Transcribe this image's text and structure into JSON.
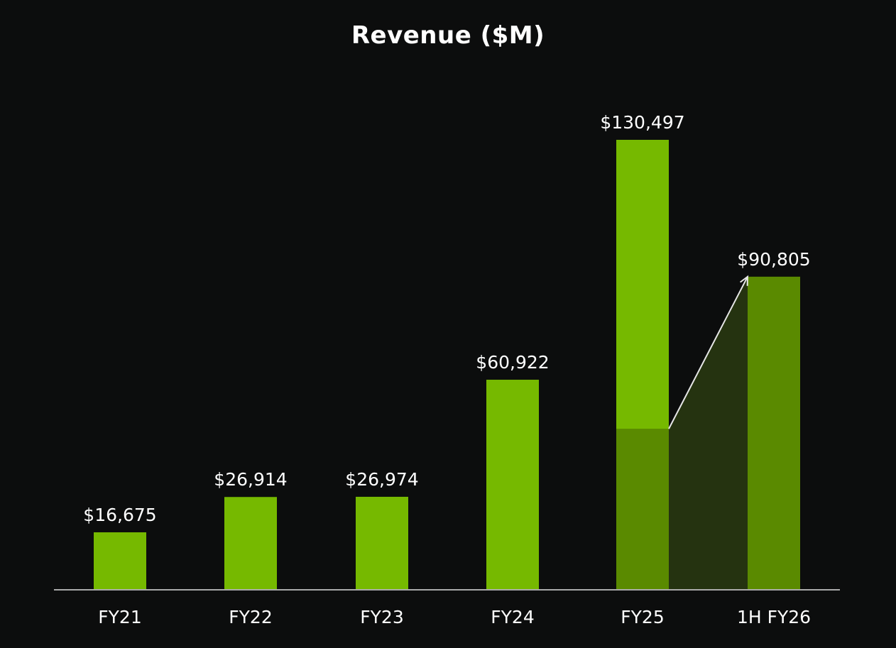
{
  "chart_data": {
    "type": "bar",
    "title": "Revenue ($M)",
    "xlabel": "",
    "ylabel": "",
    "categories": [
      "FY21",
      "FY22",
      "FY23",
      "FY24",
      "FY25",
      "1H FY26"
    ],
    "values": [
      16675,
      26914,
      26974,
      60922,
      130497,
      90805
    ],
    "value_labels": [
      "$16,675",
      "$26,914",
      "$26,974",
      "$60,922",
      "$130,497",
      "$90,805"
    ],
    "fy25_first_half_segment": 46700,
    "ylim": [
      0,
      140000
    ],
    "grid": false,
    "annotation": "arrow from the FY25 first-half segment to the 1H FY26 bar",
    "colors": {
      "background": "#0c0d0d",
      "bar": "#76b900",
      "highlight_bar": "#5a8a00",
      "connector_fill": "#253310",
      "axis": "#aaaaaa",
      "text": "#ffffff",
      "arrow": "#e6e6e6"
    }
  }
}
